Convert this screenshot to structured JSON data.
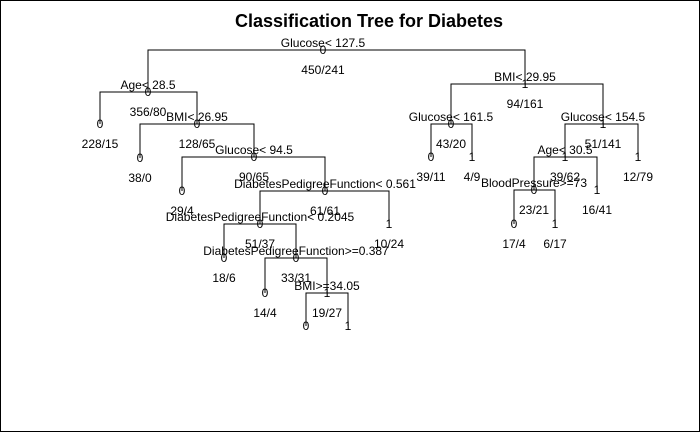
{
  "title": "Classification Tree for Diabetes",
  "nodes": [
    {
      "id": "n1",
      "split": "Glucose< 127.5",
      "klass": "0",
      "counts": "450/241"
    },
    {
      "id": "n2",
      "split": "Age< 28.5",
      "klass": "0",
      "counts": "356/80"
    },
    {
      "id": "n3",
      "split": "BMI< 29.95",
      "klass": "1",
      "counts": "94/161"
    },
    {
      "id": "n4",
      "split": "",
      "klass": "0",
      "counts": "228/15"
    },
    {
      "id": "n5",
      "split": "BMI< 26.95",
      "klass": "0",
      "counts": "128/65"
    },
    {
      "id": "n6",
      "split": "",
      "klass": "0",
      "counts": "38/0"
    },
    {
      "id": "n7",
      "split": "Glucose< 94.5",
      "klass": "0",
      "counts": "90/65"
    },
    {
      "id": "n8",
      "split": "",
      "klass": "0",
      "counts": "29/4"
    },
    {
      "id": "n9",
      "split": "DiabetesPedigreeFunction< 0.561",
      "klass": "0",
      "counts": "61/61"
    },
    {
      "id": "n10",
      "split": "DiabetesPedigreeFunction< 0.2045",
      "klass": "0",
      "counts": "51/37"
    },
    {
      "id": "n11",
      "split": "",
      "klass": "1",
      "counts": "10/24"
    },
    {
      "id": "n12",
      "split": "",
      "klass": "0",
      "counts": "18/6"
    },
    {
      "id": "n13",
      "split": "DiabetesPedigreeFunction>=0.387",
      "klass": "0",
      "counts": "33/31"
    },
    {
      "id": "n14",
      "split": "",
      "klass": "0",
      "counts": "14/4"
    },
    {
      "id": "n15",
      "split": "BMI>=34.05",
      "klass": "1",
      "counts": "19/27"
    },
    {
      "id": "n16",
      "split": "",
      "klass": "0",
      "counts": ""
    },
    {
      "id": "n17",
      "split": "",
      "klass": "1",
      "counts": ""
    },
    {
      "id": "n18",
      "split": "Glucose< 161.5",
      "klass": "0",
      "counts": "43/20"
    },
    {
      "id": "n19",
      "split": "Glucose< 154.5",
      "klass": "1",
      "counts": "51/141"
    },
    {
      "id": "n20",
      "split": "",
      "klass": "0",
      "counts": "39/11"
    },
    {
      "id": "n21",
      "split": "",
      "klass": "1",
      "counts": "4/9"
    },
    {
      "id": "n22",
      "split": "Age< 30.5",
      "klass": "1",
      "counts": "39/62"
    },
    {
      "id": "n23",
      "split": "",
      "klass": "1",
      "counts": "12/79"
    },
    {
      "id": "n24",
      "split": "BloodPressure>=73",
      "klass": "0",
      "counts": "23/21"
    },
    {
      "id": "n25",
      "split": "",
      "klass": "1",
      "counts": "16/41"
    },
    {
      "id": "n26",
      "split": "",
      "klass": "0",
      "counts": "17/4"
    },
    {
      "id": "n27",
      "split": "",
      "klass": "1",
      "counts": "6/17"
    }
  ],
  "edges": [
    [
      "n1",
      "n2"
    ],
    [
      "n1",
      "n3"
    ],
    [
      "n2",
      "n4"
    ],
    [
      "n2",
      "n5"
    ],
    [
      "n5",
      "n6"
    ],
    [
      "n5",
      "n7"
    ],
    [
      "n7",
      "n8"
    ],
    [
      "n7",
      "n9"
    ],
    [
      "n9",
      "n10"
    ],
    [
      "n9",
      "n11"
    ],
    [
      "n10",
      "n12"
    ],
    [
      "n10",
      "n13"
    ],
    [
      "n13",
      "n14"
    ],
    [
      "n13",
      "n15"
    ],
    [
      "n15",
      "n16"
    ],
    [
      "n15",
      "n17"
    ],
    [
      "n3",
      "n18"
    ],
    [
      "n3",
      "n19"
    ],
    [
      "n18",
      "n20"
    ],
    [
      "n18",
      "n21"
    ],
    [
      "n19",
      "n22"
    ],
    [
      "n19",
      "n23"
    ],
    [
      "n22",
      "n24"
    ],
    [
      "n22",
      "n25"
    ],
    [
      "n24",
      "n26"
    ],
    [
      "n24",
      "n27"
    ]
  ]
}
